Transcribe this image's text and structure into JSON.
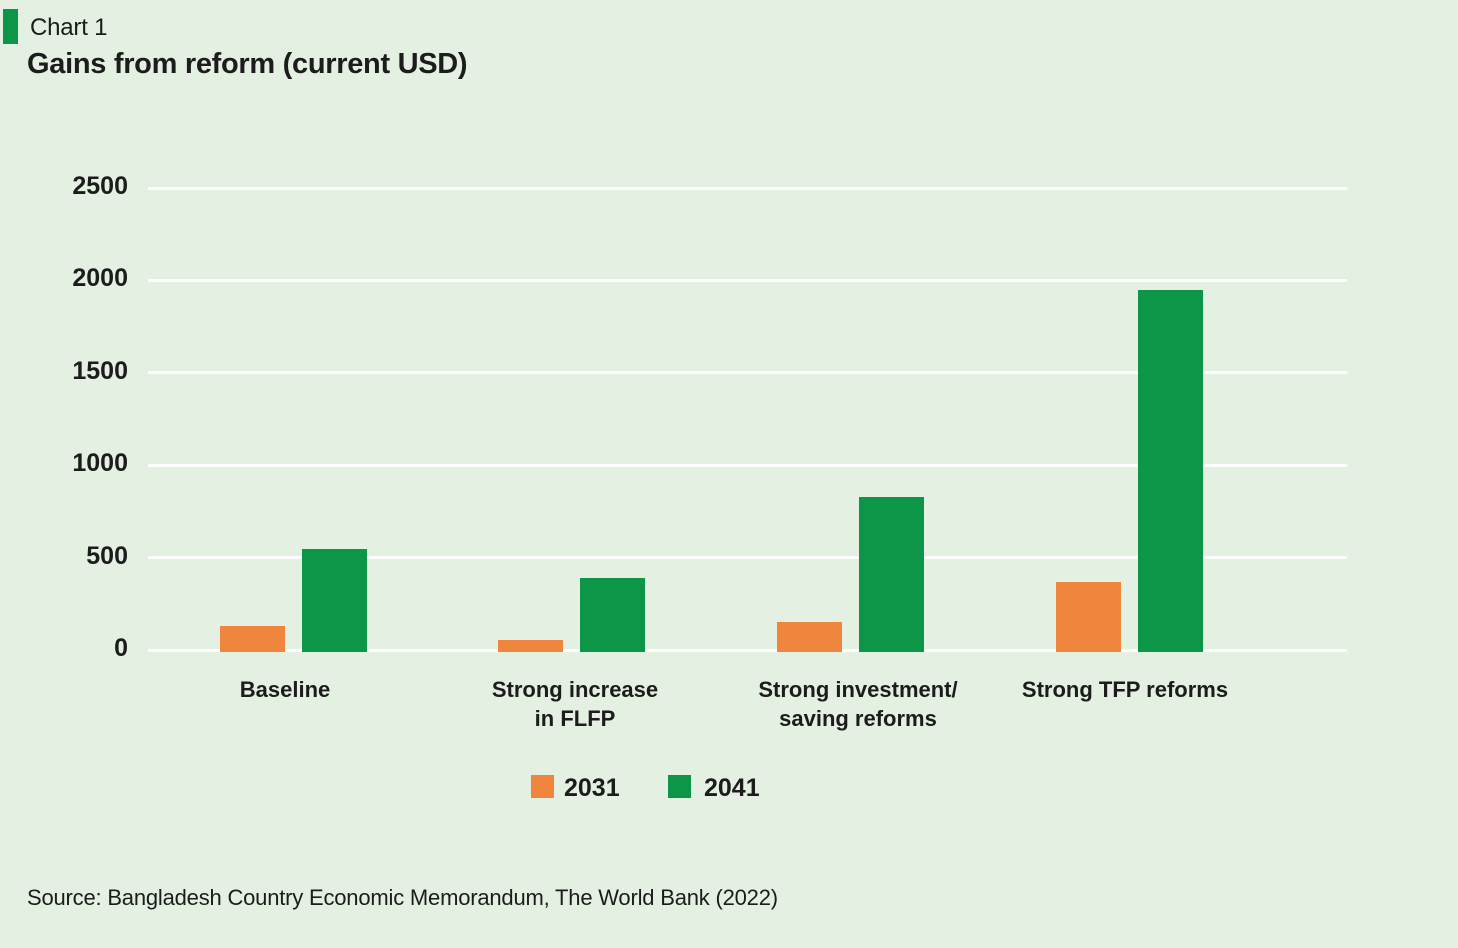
{
  "header": {
    "kicker": "Chart 1",
    "title": "Gains from reform (current USD)"
  },
  "source": "Source: Bangladesh Country Economic Memorandum, The World Bank (2022)",
  "colors": {
    "background": "#E4F0E2",
    "gridline": "#FFFFFF",
    "text": "#1C1C1C",
    "series_2031": "#F0853E",
    "series_2041": "#0E9648",
    "kicker_marker": "#0E9648"
  },
  "chart_data": {
    "type": "bar",
    "title": "Gains from reform (current USD)",
    "categories": [
      "Baseline",
      "Strong increase\nin FLFP",
      "Strong investment/\nsaving reforms",
      "Strong TFP reforms"
    ],
    "series": [
      {
        "name": "2031",
        "color": "#F0853E",
        "values": [
          140,
          65,
          160,
          380
        ]
      },
      {
        "name": "2041",
        "color": "#0E9648",
        "values": [
          555,
          400,
          840,
          1960
        ]
      }
    ],
    "xlabel": "",
    "ylabel": "",
    "ylim": [
      0,
      2500
    ],
    "yticks": [
      0,
      500,
      1000,
      1500,
      2000,
      2500
    ],
    "grid": true,
    "legend_position": "bottom"
  }
}
